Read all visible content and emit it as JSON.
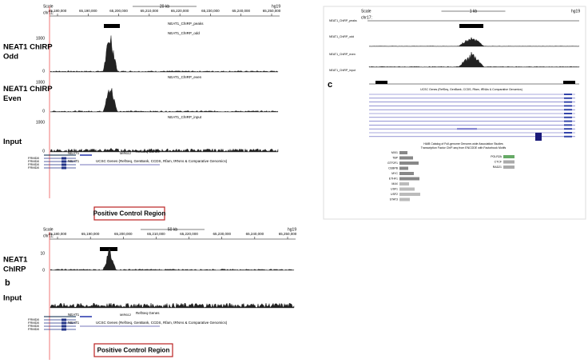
{
  "panel_a": {
    "ruler": {
      "scale": "Scale",
      "chrom": "chr11:",
      "span": "20 kb",
      "assembly": "hg19",
      "ticks": [
        "65,180,000",
        "65,190,000",
        "65,200,000",
        "65,210,000",
        "65,220,000",
        "65,230,000",
        "65,240,000",
        "65,250,000"
      ]
    },
    "track_labels": [
      [
        "NEAT1 ChIRP",
        "Odd"
      ],
      [
        "NEAT1 ChIRP",
        "Even"
      ],
      [
        "Input"
      ]
    ],
    "tracks": [
      "NEAT1_ChIRP_peaks",
      "NEAT1_ChIRP_odd",
      "NEAT1_ChIRP_even",
      "NEAT1_ChIRP_input"
    ],
    "scale_max": "1000",
    "scale_min": "0",
    "gene_tracks": [
      "RefSeq Genes",
      "UCSC Genes (RefSeq, GenBank, CCDS, Rfam, tRNAs & Comparative Genomics)"
    ],
    "genes": [
      "NEAT1",
      "MIR612",
      "FRMD8"
    ],
    "callout": "Positive Control Region"
  },
  "panel_b": {
    "letter": "b",
    "ruler": {
      "scale": "Scale",
      "chrom": "chr11:",
      "span": "50 kb",
      "assembly": "hg19",
      "ticks": [
        "65,180,000",
        "65,190,000",
        "65,200,000",
        "65,210,000",
        "65,220,000",
        "65,230,000",
        "65,240,000",
        "65,250,000"
      ]
    },
    "track_labels": [
      [
        "NEAT1",
        "ChIRP"
      ],
      [
        "Input"
      ]
    ],
    "scale_max": "10",
    "scale_min": "0",
    "gene_tracks": [
      "RefSeq Genes",
      "UCSC Genes (RefSeq, GenBank, CCDS, Rfam, tRNAs & Comparative Genomics)"
    ],
    "genes": [
      "NEAT1",
      "MIR612",
      "FRMD8"
    ],
    "callout": "Positive Control Region"
  },
  "panel_c": {
    "letter": "c",
    "ruler": {
      "scale": "Scale",
      "chrom": "chr17:",
      "span": "1 kb",
      "assembly": "hg19"
    },
    "tracks": [
      "NEAT1_ChIRP_peaks",
      "NEAT1_ChIRP_odd",
      "NEAT1_ChIRP_even",
      "NEAT1_ChIRP_input"
    ],
    "gene_tracks": [
      "UCSC Genes (RefSeq, GenBank, CCDS, Rfam, tRNAs & Comparative Genomics)",
      "HAIB Catalog of Full-genome Genome-wide Association Studies",
      "Transcription Factor ChIP-seq from ENCODE with Factorbook Motifs"
    ],
    "factors_left": [
      "MXI1",
      "TBP",
      "GTF2F1",
      "CEBPB",
      "MYC",
      "ETHF1",
      "MAX",
      "USF1",
      "USF2",
      "STAT3"
    ],
    "factors_right": [
      "POLR2A",
      "CTCF",
      "RAD21"
    ]
  }
}
